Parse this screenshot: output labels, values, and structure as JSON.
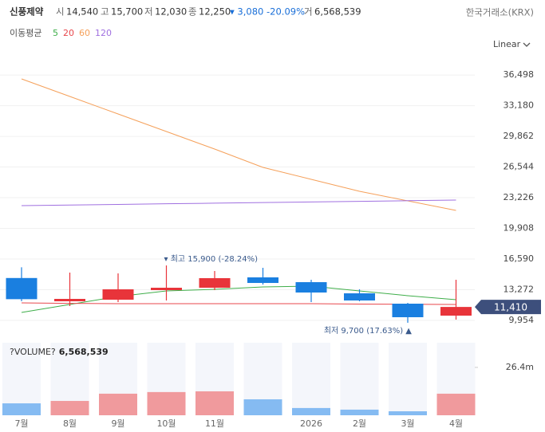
{
  "header": {
    "name": "신풍제약",
    "items": [
      {
        "label": "시",
        "value": "14,540"
      },
      {
        "label": "고",
        "value": "15,700"
      },
      {
        "label": "저",
        "value": "12,030"
      },
      {
        "label": "종",
        "value": "12,250"
      }
    ],
    "change": "▾ 3,080 -20.09%",
    "volume_label": "거",
    "volume_value": "6,568,539",
    "exchange": "한국거래소(KRX)",
    "ma_title": "이동평균",
    "scale_mode": "Linear"
  },
  "chart_data": {
    "type": "candlestick",
    "categories": [
      "7월",
      "8월",
      "9월",
      "10월",
      "11월",
      null,
      "2026",
      "2월",
      "3월",
      "4월"
    ],
    "open": [
      14540,
      12023,
      12195,
      13230,
      13488,
      14609,
      14091,
      12885,
      11764,
      10471
    ],
    "high": [
      15700,
      15126,
      15040,
      15900,
      15298,
      15643,
      14350,
      13316,
      11850,
      14350
    ],
    "low": [
      12030,
      11506,
      11937,
      12109,
      13230,
      13833,
      11937,
      12023,
      9700,
      10040
    ],
    "close": [
      12250,
      12281,
      13316,
      13488,
      14523,
      14005,
      12971,
      12109,
      10299,
      11410
    ],
    "up_color": "#e8343a",
    "down_color": "#1a7fe0",
    "series": [
      {
        "name": "5",
        "color": "#3fae4a",
        "values": [
          10816,
          11678,
          12540,
          13143,
          13316,
          13574,
          13661,
          13143,
          12626,
          12195
        ]
      },
      {
        "name": "20",
        "color": "#e8474c",
        "values": [
          11850,
          11800,
          11760,
          11760,
          11760,
          11760,
          11760,
          11720,
          11700,
          11680
        ]
      },
      {
        "name": "60",
        "color": "#f5a05a",
        "values": [
          36073,
          34176,
          32280,
          30383,
          28487,
          26504,
          25211,
          23918,
          22884,
          21850
        ]
      },
      {
        "name": "120",
        "color": "#a070e0",
        "values": [
          22367,
          22434,
          22501,
          22568,
          22635,
          22702,
          22769,
          22836,
          22903,
          22970
        ]
      }
    ],
    "ylim": [
      9264,
      37713
    ],
    "yticks": [
      {
        "value": 36498,
        "label": "36,498"
      },
      {
        "value": 33180,
        "label": "33,180"
      },
      {
        "value": 29862,
        "label": "29,862"
      },
      {
        "value": 26544,
        "label": "26,544"
      },
      {
        "value": 23226,
        "label": "23,226"
      },
      {
        "value": 19908,
        "label": "19,908"
      },
      {
        "value": 16590,
        "label": "16,590"
      },
      {
        "value": 13272,
        "label": "13,272"
      },
      {
        "value": 9954,
        "label": "9,954"
      }
    ],
    "last_price": {
      "value": 11410,
      "label": "11,410"
    },
    "annotations": {
      "high": "▾ 최고 15,900 (-28.24%)",
      "low": "최저 9,700 (17.63%) ▲"
    },
    "volume": {
      "title": "?VOLUME?",
      "last": "6,568,539",
      "values": [
        6568539,
        7900000,
        11900000,
        12800000,
        13200000,
        8800000,
        4000000,
        3100000,
        2200000,
        11900000
      ],
      "up_color": "#f09a9d",
      "down_color": "#85bbf2",
      "ylim": [
        0,
        40000000
      ],
      "yticks": [
        {
          "value": 26400000,
          "label": "26.4m"
        }
      ]
    },
    "grid": true
  }
}
